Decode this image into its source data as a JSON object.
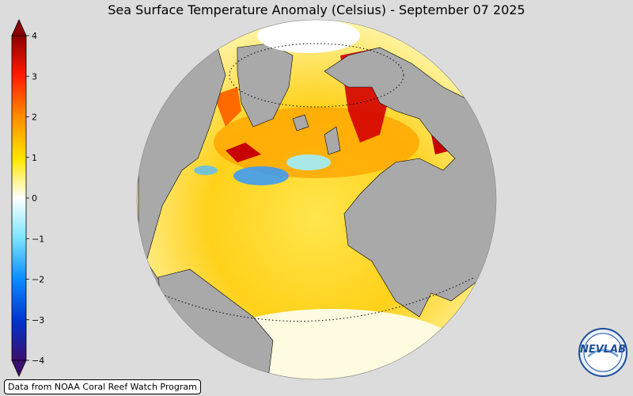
{
  "title": "Sea Surface Temperature Anomaly (Celsius) - September 07 2025",
  "colorbar": {
    "ticks": [
      "4",
      "3",
      "2",
      "1",
      "0",
      "−1",
      "−2",
      "−3",
      "−4"
    ],
    "min": -4,
    "max": 4,
    "extend": "both",
    "colors": [
      "#3b0f6f",
      "#0033cc",
      "#0a8cff",
      "#7fe6ff",
      "#ffffff",
      "#ffff55",
      "#ffa500",
      "#ff3300",
      "#8b0000"
    ]
  },
  "map": {
    "projection": "orthographic",
    "center": "North Atlantic",
    "land_color": "#a9a9a9",
    "ocean_anomaly": "mostly warm (yellow/orange), red near Europe and northwest Atlantic, cool patches off Newfoundland"
  },
  "credit": "Data from NOAA Coral Reef Watch Program",
  "logo": {
    "text": "NEVLAB",
    "ring_color": "#1e4d9a"
  }
}
